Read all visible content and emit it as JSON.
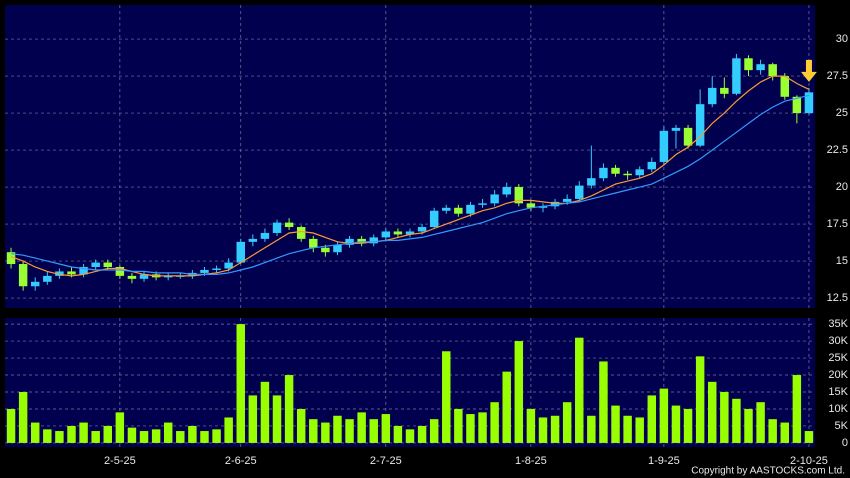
{
  "chart_data": [
    {
      "type": "candlestick",
      "open": [
        15.6,
        14.8,
        13.3,
        13.6,
        14.0,
        14.3,
        14.1,
        14.6,
        14.9,
        14.6,
        14.0,
        13.8,
        14.1,
        13.9,
        14.0,
        14.0,
        14.2,
        14.4,
        14.5,
        14.9,
        16.3,
        16.5,
        16.9,
        17.6,
        17.3,
        16.5,
        15.9,
        15.6,
        16.1,
        16.5,
        16.2,
        16.6,
        17.0,
        16.8,
        17.0,
        17.3,
        18.4,
        18.6,
        18.2,
        18.8,
        18.9,
        19.5,
        20.0,
        18.9,
        18.6,
        18.7,
        19.0,
        19.2,
        20.1,
        20.6,
        21.3,
        20.9,
        20.8,
        21.2,
        21.7,
        23.8,
        24.0,
        22.8,
        25.6,
        26.7,
        26.3,
        28.7,
        27.9,
        28.3,
        27.5,
        26.1,
        25.0
      ],
      "high": [
        15.9,
        15.0,
        13.9,
        14.3,
        14.5,
        14.6,
        14.8,
        15.1,
        15.1,
        14.7,
        14.2,
        14.3,
        14.3,
        14.2,
        14.2,
        14.4,
        14.6,
        14.7,
        15.2,
        16.5,
        16.8,
        17.2,
        17.8,
        17.9,
        17.4,
        16.7,
        16.1,
        16.3,
        16.7,
        16.7,
        16.8,
        17.2,
        17.2,
        17.2,
        17.5,
        18.6,
        18.8,
        18.8,
        19.0,
        19.2,
        19.8,
        20.3,
        20.2,
        19.1,
        18.9,
        19.2,
        19.5,
        20.4,
        22.8,
        21.6,
        21.5,
        21.1,
        21.4,
        22.0,
        24.1,
        24.2,
        24.2,
        26.6,
        27.5,
        27.4,
        29.0,
        28.9,
        28.6,
        28.4,
        27.7,
        26.2,
        26.7
      ],
      "low": [
        14.5,
        13.0,
        13.0,
        13.4,
        13.8,
        13.9,
        13.9,
        14.4,
        14.4,
        13.8,
        13.5,
        13.6,
        13.7,
        13.7,
        13.8,
        13.8,
        14.0,
        14.2,
        14.3,
        14.8,
        16.0,
        16.3,
        16.7,
        17.1,
        16.3,
        15.6,
        15.3,
        15.4,
        15.9,
        16.0,
        16.0,
        16.4,
        16.6,
        16.6,
        16.8,
        17.2,
        18.2,
        18.0,
        18.0,
        18.6,
        18.7,
        19.3,
        18.7,
        18.4,
        18.3,
        18.5,
        18.8,
        19.0,
        19.9,
        20.4,
        20.7,
        20.5,
        20.6,
        21.0,
        21.5,
        22.6,
        22.6,
        22.7,
        25.4,
        26.0,
        26.2,
        27.5,
        27.6,
        27.2,
        25.9,
        24.3,
        24.9
      ],
      "close": [
        14.8,
        13.3,
        13.6,
        14.0,
        14.3,
        14.1,
        14.6,
        14.9,
        14.6,
        14.0,
        13.8,
        14.1,
        13.9,
        14.0,
        14.0,
        14.2,
        14.4,
        14.5,
        14.9,
        16.3,
        16.5,
        16.9,
        17.6,
        17.3,
        16.5,
        15.9,
        15.6,
        16.1,
        16.5,
        16.2,
        16.6,
        17.0,
        16.8,
        17.0,
        17.3,
        18.4,
        18.6,
        18.2,
        18.8,
        18.9,
        19.5,
        20.0,
        18.9,
        18.6,
        18.7,
        19.0,
        19.2,
        20.1,
        20.6,
        21.3,
        20.9,
        20.8,
        21.2,
        21.7,
        23.8,
        24.0,
        22.8,
        25.6,
        26.7,
        26.3,
        28.7,
        27.9,
        28.3,
        27.5,
        26.1,
        25.0,
        26.4
      ],
      "up_color": "#33ccff",
      "down_color": "#99ff33",
      "series": [
        {
          "color": "#ff9933",
          "values": [
            15.3,
            15.0,
            14.6,
            14.3,
            14.1,
            14.0,
            14.1,
            14.3,
            14.5,
            14.5,
            14.3,
            14.1,
            14.0,
            14.0,
            14.0,
            14.0,
            14.1,
            14.2,
            14.4,
            14.9,
            15.4,
            15.9,
            16.4,
            16.9,
            17.0,
            16.9,
            16.6,
            16.3,
            16.2,
            16.2,
            16.3,
            16.4,
            16.6,
            16.8,
            16.9,
            17.2,
            17.5,
            17.8,
            18.1,
            18.4,
            18.6,
            18.9,
            19.1,
            19.1,
            19.0,
            18.9,
            18.9,
            19.1,
            19.4,
            19.8,
            20.2,
            20.4,
            20.6,
            20.9,
            21.5,
            22.2,
            22.7,
            23.4,
            24.3,
            25.0,
            25.8,
            26.5,
            27.1,
            27.5,
            27.5,
            27.0,
            26.6
          ]
        },
        {
          "color": "#3399ff",
          "values": [
            15.5,
            15.4,
            15.2,
            15.0,
            14.8,
            14.6,
            14.5,
            14.4,
            14.4,
            14.4,
            14.3,
            14.3,
            14.2,
            14.2,
            14.2,
            14.1,
            14.1,
            14.1,
            14.2,
            14.4,
            14.6,
            14.9,
            15.2,
            15.5,
            15.7,
            15.9,
            16.0,
            16.1,
            16.2,
            16.3,
            16.3,
            16.4,
            16.4,
            16.5,
            16.6,
            16.8,
            17.0,
            17.2,
            17.4,
            17.6,
            17.9,
            18.2,
            18.4,
            18.6,
            18.7,
            18.8,
            18.9,
            19.0,
            19.2,
            19.4,
            19.6,
            19.8,
            20.0,
            20.2,
            20.6,
            21.0,
            21.4,
            21.9,
            22.5,
            23.1,
            23.7,
            24.3,
            24.9,
            25.4,
            25.8,
            26.0,
            26.2
          ]
        }
      ],
      "ylim": [
        11.83,
        32.3
      ],
      "yticks": [
        12.5,
        15,
        17.5,
        20,
        22.5,
        25,
        27.5,
        30
      ],
      "grid": true
    },
    {
      "type": "bar",
      "color": "#99ff00",
      "categories": [
        null,
        null,
        null,
        null,
        null,
        null,
        null,
        null,
        null,
        "2-5-25",
        null,
        null,
        null,
        null,
        null,
        null,
        null,
        null,
        null,
        "2-6-25",
        null,
        null,
        null,
        null,
        null,
        null,
        null,
        null,
        null,
        null,
        null,
        "2-7-25",
        null,
        null,
        null,
        null,
        null,
        null,
        null,
        null,
        null,
        null,
        null,
        "1-8-25",
        null,
        null,
        null,
        null,
        null,
        null,
        null,
        null,
        null,
        null,
        "1-9-25",
        null,
        null,
        null,
        null,
        null,
        null,
        null,
        null,
        null,
        null,
        null,
        "2-10-25"
      ],
      "values": [
        10000,
        15000,
        6000,
        4000,
        3500,
        5000,
        6000,
        3500,
        5000,
        9000,
        4500,
        3500,
        4000,
        6000,
        3500,
        5000,
        3500,
        4000,
        7500,
        35000,
        14000,
        18000,
        14000,
        20000,
        10000,
        7000,
        6000,
        8000,
        7000,
        9000,
        7000,
        8500,
        5000,
        4000,
        5000,
        7000,
        27000,
        10000,
        8500,
        9000,
        12000,
        21000,
        30000,
        10000,
        7500,
        8000,
        12000,
        31000,
        8000,
        24000,
        11000,
        8000,
        7500,
        14000,
        16000,
        11000,
        10000,
        25500,
        18000,
        15000,
        13000,
        10000,
        12000,
        7000,
        6000,
        20000,
        3500
      ],
      "ylim": [
        -1200,
        36800
      ],
      "yticks": [
        0,
        {
          "value": 5000,
          "label": "5K"
        },
        {
          "value": 10000,
          "label": "10K"
        },
        {
          "value": 15000,
          "label": "15K"
        },
        {
          "value": 20000,
          "label": "20K"
        },
        {
          "value": 25000,
          "label": "25K"
        },
        {
          "value": 30000,
          "label": "30K"
        },
        {
          "value": 35000,
          "label": "35K"
        }
      ],
      "grid": true
    }
  ],
  "footer": "Copyright by AASTOCKS.com Ltd."
}
